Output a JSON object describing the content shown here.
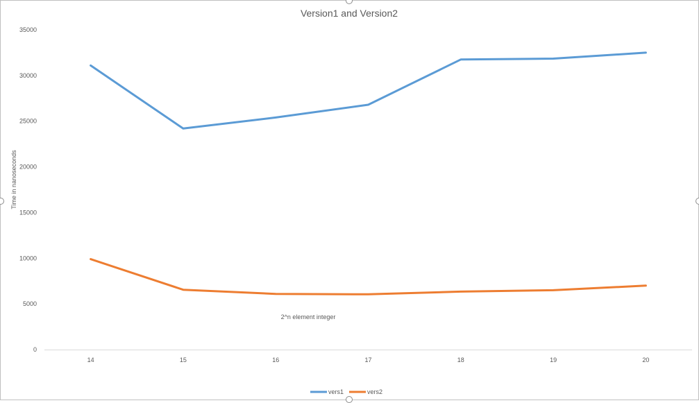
{
  "chart_data": {
    "type": "line",
    "title": "Version1 and Version2",
    "xlabel": "2^n element integer",
    "ylabel": "Time in nanoseconds",
    "categories": [
      "14",
      "15",
      "16",
      "17",
      "18",
      "19",
      "20"
    ],
    "y_ticks": [
      "0",
      "5000",
      "10000",
      "15000",
      "20000",
      "25000",
      "30000",
      "35000"
    ],
    "ylim": [
      0,
      35000
    ],
    "grid": false,
    "legend_position": "bottom",
    "series": [
      {
        "name": "vers1",
        "color": "#5b9bd5",
        "values": [
          31100,
          24200,
          25400,
          26800,
          31750,
          31850,
          32500
        ]
      },
      {
        "name": "vers2",
        "color": "#ed7d31",
        "values": [
          9900,
          6550,
          6100,
          6050,
          6350,
          6500,
          7000
        ]
      }
    ]
  }
}
